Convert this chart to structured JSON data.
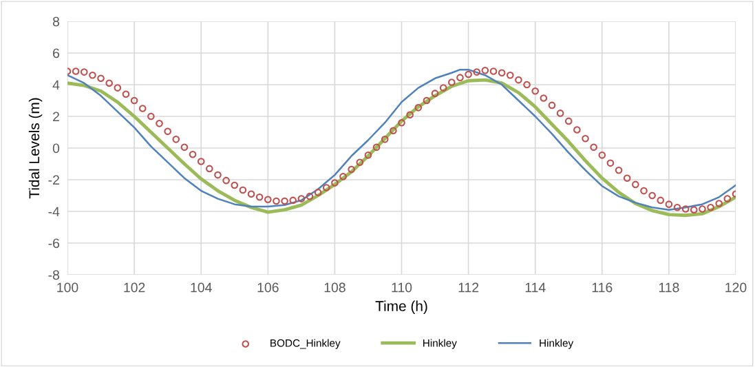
{
  "chart_data": {
    "type": "line",
    "xlabel": "Time (h)",
    "ylabel": "Tidal Levels (m)",
    "xlim": [
      100,
      120
    ],
    "xticks": [
      100,
      102,
      104,
      106,
      108,
      110,
      112,
      114,
      116,
      118,
      120
    ],
    "ylim": [
      -8,
      8
    ],
    "yticks": [
      -8,
      -6,
      -4,
      -2,
      0,
      2,
      4,
      6,
      8
    ],
    "grid": true,
    "legend": "bottom",
    "series": [
      {
        "name": "BODC_Hinkley",
        "type": "scatter",
        "marker": "circle",
        "color": "#c0504d",
        "x": [
          100,
          100.25,
          100.5,
          100.75,
          101,
          101.25,
          101.5,
          101.75,
          102,
          102.25,
          102.5,
          102.75,
          103,
          103.25,
          103.5,
          103.75,
          104,
          104.25,
          104.5,
          104.75,
          105,
          105.25,
          105.5,
          105.75,
          106,
          106.25,
          106.5,
          106.75,
          107,
          107.25,
          107.5,
          107.75,
          108,
          108.25,
          108.5,
          108.75,
          109,
          109.25,
          109.5,
          109.75,
          110,
          110.25,
          110.5,
          110.75,
          111,
          111.25,
          111.5,
          111.75,
          112,
          112.25,
          112.5,
          112.75,
          113,
          113.25,
          113.5,
          113.75,
          114,
          114.25,
          114.5,
          114.75,
          115,
          115.25,
          115.5,
          115.75,
          116,
          116.25,
          116.5,
          116.75,
          117,
          117.25,
          117.5,
          117.75,
          118,
          118.25,
          118.5,
          118.75,
          119,
          119.25,
          119.5,
          119.75,
          120
        ],
        "values": [
          4.85,
          4.85,
          4.8,
          4.6,
          4.4,
          4.1,
          3.8,
          3.4,
          3.0,
          2.5,
          2.0,
          1.55,
          1.05,
          0.55,
          0.05,
          -0.4,
          -0.85,
          -1.3,
          -1.7,
          -2.05,
          -2.35,
          -2.65,
          -2.9,
          -3.1,
          -3.25,
          -3.35,
          -3.35,
          -3.3,
          -3.2,
          -3.05,
          -2.8,
          -2.5,
          -2.2,
          -1.8,
          -1.35,
          -0.9,
          -0.45,
          0.05,
          0.55,
          1.1,
          1.6,
          2.1,
          2.55,
          3.0,
          3.45,
          3.8,
          4.15,
          4.45,
          4.65,
          4.8,
          4.9,
          4.85,
          4.75,
          4.6,
          4.3,
          4.0,
          3.6,
          3.15,
          2.7,
          2.2,
          1.7,
          1.15,
          0.6,
          0.05,
          -0.45,
          -0.95,
          -1.4,
          -1.9,
          -2.3,
          -2.7,
          -3.0,
          -3.3,
          -3.55,
          -3.75,
          -3.85,
          -3.9,
          -3.85,
          -3.75,
          -3.5,
          -3.2,
          -2.9
        ]
      },
      {
        "name": "Hinkley",
        "color": "#9bbb59",
        "x": [
          100,
          100.5,
          101,
          101.5,
          102,
          102.5,
          103,
          103.5,
          104,
          104.5,
          105,
          105.5,
          106,
          106.5,
          107,
          107.5,
          108,
          108.5,
          109,
          109.5,
          110,
          110.5,
          111,
          111.5,
          112,
          112.5,
          113,
          113.5,
          114,
          114.5,
          115,
          115.5,
          116,
          116.5,
          117,
          117.5,
          118,
          118.5,
          119,
          119.5,
          120
        ],
        "values": [
          4.1,
          3.95,
          3.6,
          2.9,
          2.0,
          1.0,
          0.0,
          -1.0,
          -1.95,
          -2.7,
          -3.3,
          -3.75,
          -4.05,
          -3.9,
          -3.6,
          -3.0,
          -2.3,
          -1.5,
          -0.5,
          0.6,
          1.7,
          2.6,
          3.3,
          3.9,
          4.25,
          4.3,
          4.1,
          3.5,
          2.6,
          1.5,
          0.4,
          -0.8,
          -1.9,
          -2.8,
          -3.5,
          -3.95,
          -4.2,
          -4.25,
          -4.15,
          -3.7,
          -3.1
        ]
      },
      {
        "name": "Hinkley",
        "color": "#4f81bd",
        "x": [
          100,
          100.5,
          101,
          101.5,
          102,
          102.5,
          103,
          103.5,
          104,
          104.5,
          105,
          105.5,
          106,
          106.5,
          107,
          107.5,
          108,
          108.5,
          109,
          109.5,
          110,
          110.5,
          111,
          111.5,
          111.75,
          112,
          112.5,
          113,
          113.5,
          114,
          114.5,
          115,
          115.5,
          116,
          116.5,
          117,
          117.5,
          118,
          118.5,
          119,
          119.5,
          120
        ],
        "values": [
          4.6,
          4.1,
          3.3,
          2.3,
          1.3,
          0.1,
          -0.9,
          -1.9,
          -2.7,
          -3.2,
          -3.55,
          -3.7,
          -3.7,
          -3.6,
          -3.3,
          -2.6,
          -1.7,
          -0.5,
          0.5,
          1.6,
          2.9,
          3.8,
          4.4,
          4.75,
          4.95,
          4.95,
          4.6,
          4.0,
          3.0,
          2.0,
          0.9,
          -0.3,
          -1.4,
          -2.4,
          -3.05,
          -3.45,
          -3.75,
          -3.9,
          -3.75,
          -3.55,
          -3.1,
          -2.35
        ]
      }
    ]
  }
}
